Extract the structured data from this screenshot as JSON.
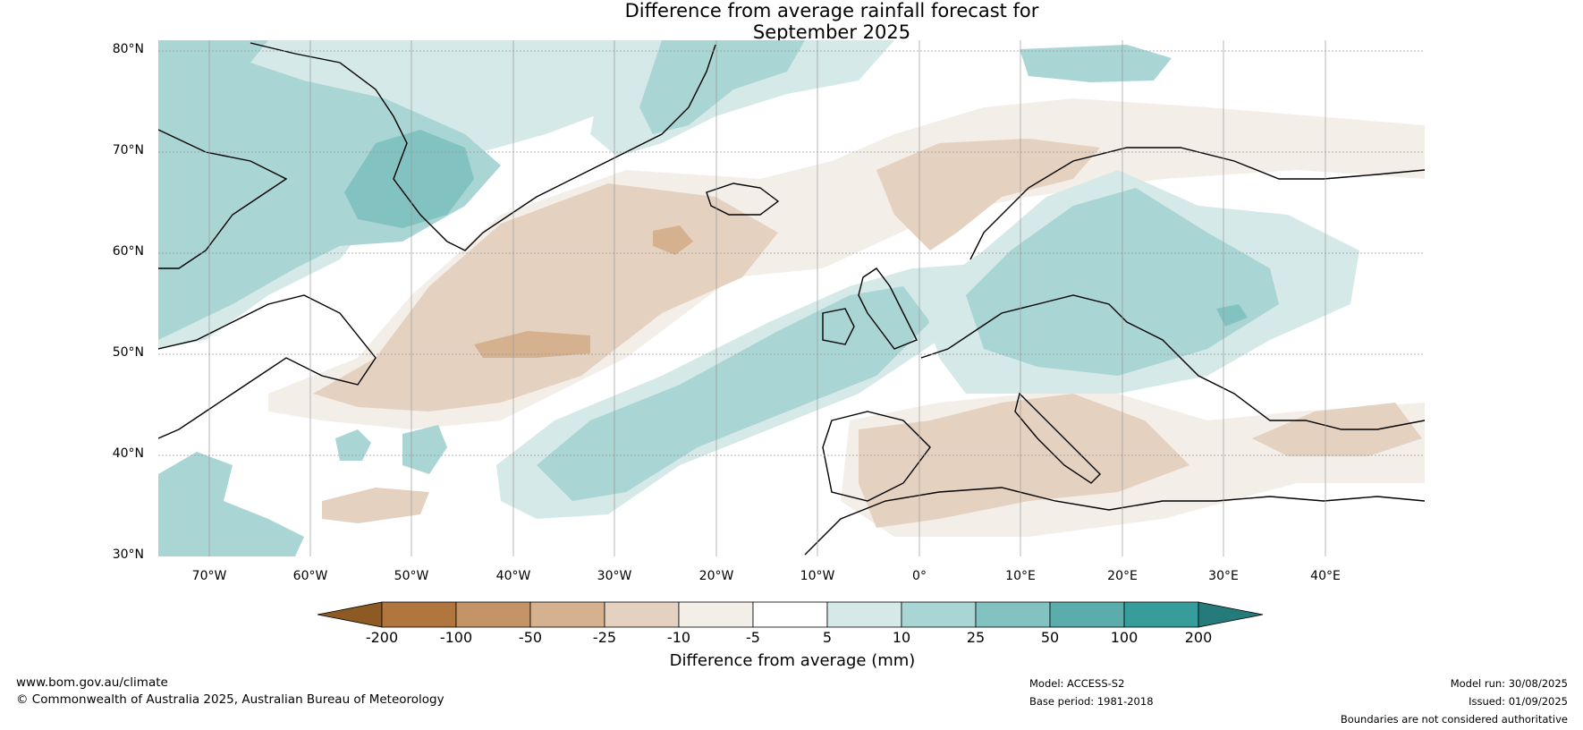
{
  "title_line1": "Difference from average rainfall forecast for",
  "title_line2": "September 2025",
  "lat_labels": [
    "80°N",
    "70°N",
    "60°N",
    "50°N",
    "40°N",
    "30°N"
  ],
  "lon_labels": [
    "70°W",
    "60°W",
    "50°W",
    "40°W",
    "30°W",
    "20°W",
    "10°W",
    "0°",
    "10°E",
    "20°E",
    "30°E",
    "40°E"
  ],
  "colorbar": {
    "ticks": [
      "-200",
      "-100",
      "-50",
      "-25",
      "-10",
      "-5",
      "5",
      "10",
      "25",
      "50",
      "100",
      "200"
    ],
    "colors": [
      "#8c5a22",
      "#b0763d",
      "#c49366",
      "#d6b18f",
      "#e5d1bf",
      "#f3eee8",
      "#ffffff",
      "#d4e9e8",
      "#a9d5d4",
      "#82c3c1",
      "#5aadab",
      "#369d9b",
      "#257b7a"
    ],
    "label": "Difference from average (mm)"
  },
  "footer": {
    "url": "www.bom.gov.au/climate",
    "copyright": "© Commonwealth of Australia 2025, Australian Bureau of Meteorology",
    "model": "Model: ACCESS-S2",
    "base_period": "Base period: 1981-2018",
    "model_run": "Model run: 30/08/2025",
    "issued": "Issued: 01/09/2025",
    "disclaimer": "Boundaries are not considered authoritative"
  }
}
